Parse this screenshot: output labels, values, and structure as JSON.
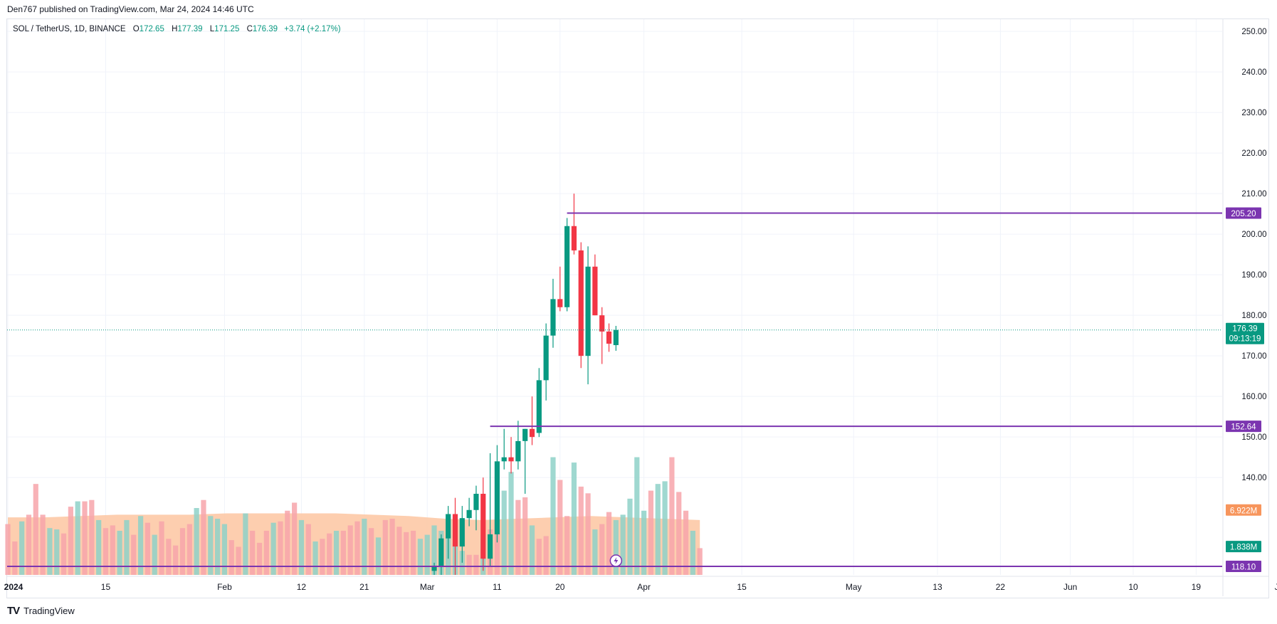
{
  "header": {
    "published": "Den767 published on TradingView.com, Mar 24, 2024 14:46 UTC"
  },
  "legend": {
    "symbol": "SOL / TetherUS, 1D, BINANCE",
    "open_label": "O",
    "open": "172.65",
    "high_label": "H",
    "high": "177.39",
    "low_label": "L",
    "low": "171.25",
    "close_label": "C",
    "close": "176.39",
    "change": "+3.74 (+2.17%)"
  },
  "footer": {
    "logo": "TV",
    "brand": "TradingView"
  },
  "colors": {
    "up": "#089981",
    "down": "#f23645",
    "vol_up": "#8ed1c8",
    "vol_down": "#f7a4aa",
    "vol_ma": "#fdc9a6",
    "vol_ma_bar": "#f7955c",
    "level": "#7b35b0",
    "price_tag": "#089981",
    "grid": "#f0f3fa"
  },
  "chart_data": {
    "type": "candlestick",
    "price_axis": {
      "min": 116,
      "max": 253,
      "ticks": [
        140,
        150,
        160,
        170,
        180,
        190,
        200,
        210,
        220,
        230,
        240,
        250
      ],
      "tick_labels": [
        "140.00",
        "150.00",
        "160.00",
        "170.00",
        "180.00",
        "190.00",
        "200.00",
        "210.00",
        "220.00",
        "230.00",
        "240.00",
        "250.00"
      ]
    },
    "time_axis": {
      "start_date": "2024-01-01",
      "labels": [
        {
          "text": "2024",
          "date": "2024-01-01",
          "bold": true
        },
        {
          "text": "15",
          "date": "2024-01-15"
        },
        {
          "text": "Feb",
          "date": "2024-02-01"
        },
        {
          "text": "12",
          "date": "2024-02-12"
        },
        {
          "text": "21",
          "date": "2024-02-21"
        },
        {
          "text": "Mar",
          "date": "2024-03-01"
        },
        {
          "text": "11",
          "date": "2024-03-11"
        },
        {
          "text": "20",
          "date": "2024-03-20"
        },
        {
          "text": "Apr",
          "date": "2024-04-01"
        },
        {
          "text": "15",
          "date": "2024-04-15"
        },
        {
          "text": "May",
          "date": "2024-05-01"
        },
        {
          "text": "13",
          "date": "2024-05-13"
        },
        {
          "text": "22",
          "date": "2024-05-22"
        },
        {
          "text": "Jun",
          "date": "2024-06-01"
        },
        {
          "text": "10",
          "date": "2024-06-10"
        },
        {
          "text": "19",
          "date": "2024-06-19"
        },
        {
          "text": "Jul",
          "date": "2024-07-01"
        }
      ]
    },
    "candles": [
      {
        "date": "2024-03-02",
        "o": 117,
        "h": 119,
        "l": 116,
        "c": 118
      },
      {
        "date": "2024-03-03",
        "o": 118,
        "h": 126,
        "l": 116,
        "c": 125
      },
      {
        "date": "2024-03-04",
        "o": 125,
        "h": 133,
        "l": 120,
        "c": 131
      },
      {
        "date": "2024-03-05",
        "o": 131,
        "h": 135,
        "l": 116,
        "c": 123
      },
      {
        "date": "2024-03-06",
        "o": 123,
        "h": 133,
        "l": 119,
        "c": 130
      },
      {
        "date": "2024-03-07",
        "o": 130,
        "h": 135,
        "l": 128,
        "c": 132
      },
      {
        "date": "2024-03-08",
        "o": 132,
        "h": 138,
        "l": 127,
        "c": 136
      },
      {
        "date": "2024-03-09",
        "o": 136,
        "h": 140,
        "l": 117,
        "c": 120
      },
      {
        "date": "2024-03-10",
        "o": 120,
        "h": 146,
        "l": 118,
        "c": 126
      },
      {
        "date": "2024-03-11",
        "o": 126,
        "h": 148,
        "l": 124,
        "c": 144
      },
      {
        "date": "2024-03-12",
        "o": 144,
        "h": 152,
        "l": 142,
        "c": 145
      },
      {
        "date": "2024-03-13",
        "o": 145,
        "h": 150,
        "l": 141,
        "c": 144
      },
      {
        "date": "2024-03-14",
        "o": 144,
        "h": 154,
        "l": 142,
        "c": 149
      },
      {
        "date": "2024-03-15",
        "o": 149,
        "h": 152,
        "l": 136,
        "c": 152
      },
      {
        "date": "2024-03-16",
        "o": 152,
        "h": 160,
        "l": 148,
        "c": 150
      },
      {
        "date": "2024-03-17",
        "o": 151,
        "h": 167,
        "l": 150,
        "c": 164
      },
      {
        "date": "2024-03-18",
        "o": 164,
        "h": 178,
        "l": 159,
        "c": 175
      },
      {
        "date": "2024-03-19",
        "o": 175,
        "h": 189,
        "l": 172,
        "c": 184
      },
      {
        "date": "2024-03-20",
        "o": 184,
        "h": 192,
        "l": 181,
        "c": 182
      },
      {
        "date": "2024-03-21",
        "o": 182,
        "h": 204,
        "l": 181,
        "c": 202
      },
      {
        "date": "2024-03-22",
        "o": 202,
        "h": 210,
        "l": 195,
        "c": 196
      },
      {
        "date": "2024-03-23",
        "o": 196,
        "h": 198,
        "l": 167,
        "c": 170
      },
      {
        "date": "2024-03-24",
        "o": 170,
        "h": 197,
        "l": 163,
        "c": 192
      },
      {
        "date": "2024-03-25",
        "o": 192,
        "h": 195,
        "l": 180,
        "c": 180
      },
      {
        "date": "2024-03-26",
        "o": 180,
        "h": 182,
        "l": 168,
        "c": 176
      },
      {
        "date": "2024-03-27",
        "o": 176,
        "h": 178,
        "l": 171,
        "c": 173
      },
      {
        "date": "2024-03-28",
        "o": 172.65,
        "h": 177.39,
        "l": 171.25,
        "c": 176.39
      }
    ],
    "volume": {
      "axis_min": 0,
      "axis_max": 1,
      "bars_by_day": [
        0.38,
        0.25,
        0.4,
        0.45,
        0.68,
        0.45,
        0.35,
        0.34,
        0.31,
        0.51,
        0.55,
        0.55,
        0.56,
        0.41,
        0.35,
        0.37,
        0.33,
        0.41,
        0.3,
        0.44,
        0.39,
        0.3,
        0.4,
        0.27,
        0.22,
        0.35,
        0.38,
        0.5,
        0.56,
        0.44,
        0.42,
        0.38,
        0.26,
        0.21,
        0.46,
        0.33,
        0.24,
        0.33,
        0.39,
        0.4,
        0.48,
        0.54,
        0.41,
        0.38,
        0.25,
        0.27,
        0.31,
        0.33,
        0.33,
        0.37,
        0.4,
        0.42,
        0.35,
        0.28,
        0.41,
        0.42,
        0.36,
        0.32,
        0.33,
        0.27,
        0.3,
        0.37,
        0.33,
        0.3,
        0.24,
        0.18,
        0.15,
        0.15,
        0.3,
        0.34,
        0.43,
        0.63,
        0.77,
        0.56,
        0.58,
        0.37,
        0.27,
        0.29,
        0.88,
        0.71,
        0.44,
        0.84,
        0.66,
        0.61,
        0.34,
        0.38,
        0.47,
        0.41,
        0.45,
        0.57,
        0.88,
        0.48,
        0.63,
        0.68,
        0.7,
        0.88,
        0.62,
        0.48,
        0.33,
        0.2
      ],
      "dir_by_day": "dduddduudduddudduudududdddduduuuddudddudddududdudddududdddduuuuuuuddudduudduddudduddudduuuuuduudddudud",
      "ma": [
        0.43,
        0.43,
        0.44,
        0.45,
        0.45,
        0.45,
        0.46,
        0.46,
        0.46,
        0.46,
        0.45,
        0.44,
        0.42,
        0.41,
        0.42,
        0.43,
        0.44,
        0.43,
        0.42,
        0.41
      ]
    },
    "levels": [
      {
        "name": "resistance",
        "value": 205.2,
        "label": "205.20",
        "from": "2024-03-21"
      },
      {
        "name": "support",
        "value": 152.64,
        "label": "152.64",
        "from": "2024-03-10"
      },
      {
        "name": "support-low",
        "value": 118.1,
        "label": "118.10",
        "from": "2023-12-30"
      }
    ],
    "last_price": {
      "value": 176.39,
      "label": "176.39",
      "countdown": "09:13:19"
    },
    "volume_tags": [
      {
        "label": "6.922M",
        "color": "#f7955c",
        "y_price": 132
      },
      {
        "label": "1.838M",
        "color": "#089981",
        "y_price": 123
      }
    ]
  }
}
